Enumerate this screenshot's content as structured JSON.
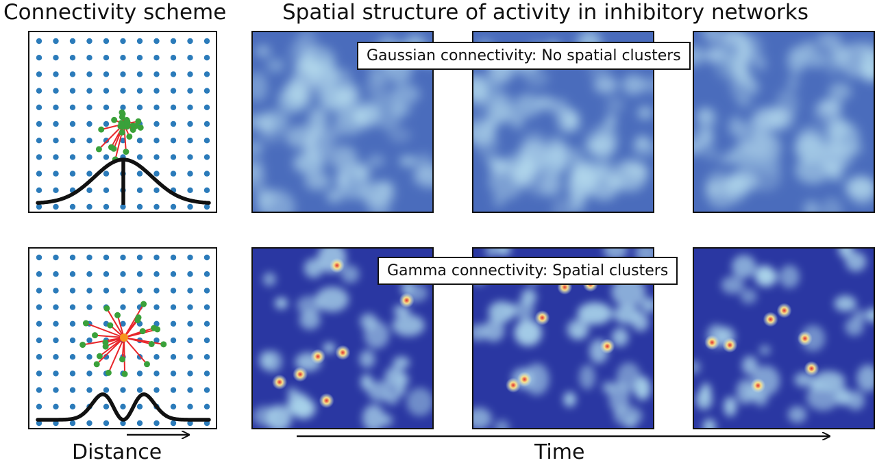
{
  "titles": {
    "left": "Connectivity scheme",
    "right": "Spatial structure of activity in inhibitory networks"
  },
  "rows": [
    {
      "id": "gaussian",
      "caption": "Gaussian connectivity: No spatial clusters",
      "profile": "gaussian",
      "clustered": false
    },
    {
      "id": "gamma",
      "caption": "Gamma connectivity: Spatial clusters",
      "profile": "gamma",
      "clustered": true
    }
  ],
  "axes": {
    "distance_label": "Distance",
    "time_label": "Time"
  },
  "colors": {
    "grid_dot": "#2b7bba",
    "connection_line": "#e8262a",
    "target_node": "#3aa13a",
    "source_node_gamma": "#f7931e",
    "heatmap_low": "#2e3ea8",
    "heatmap_mid": "#c7e4f0",
    "heatmap_high": "#e0302c"
  }
}
